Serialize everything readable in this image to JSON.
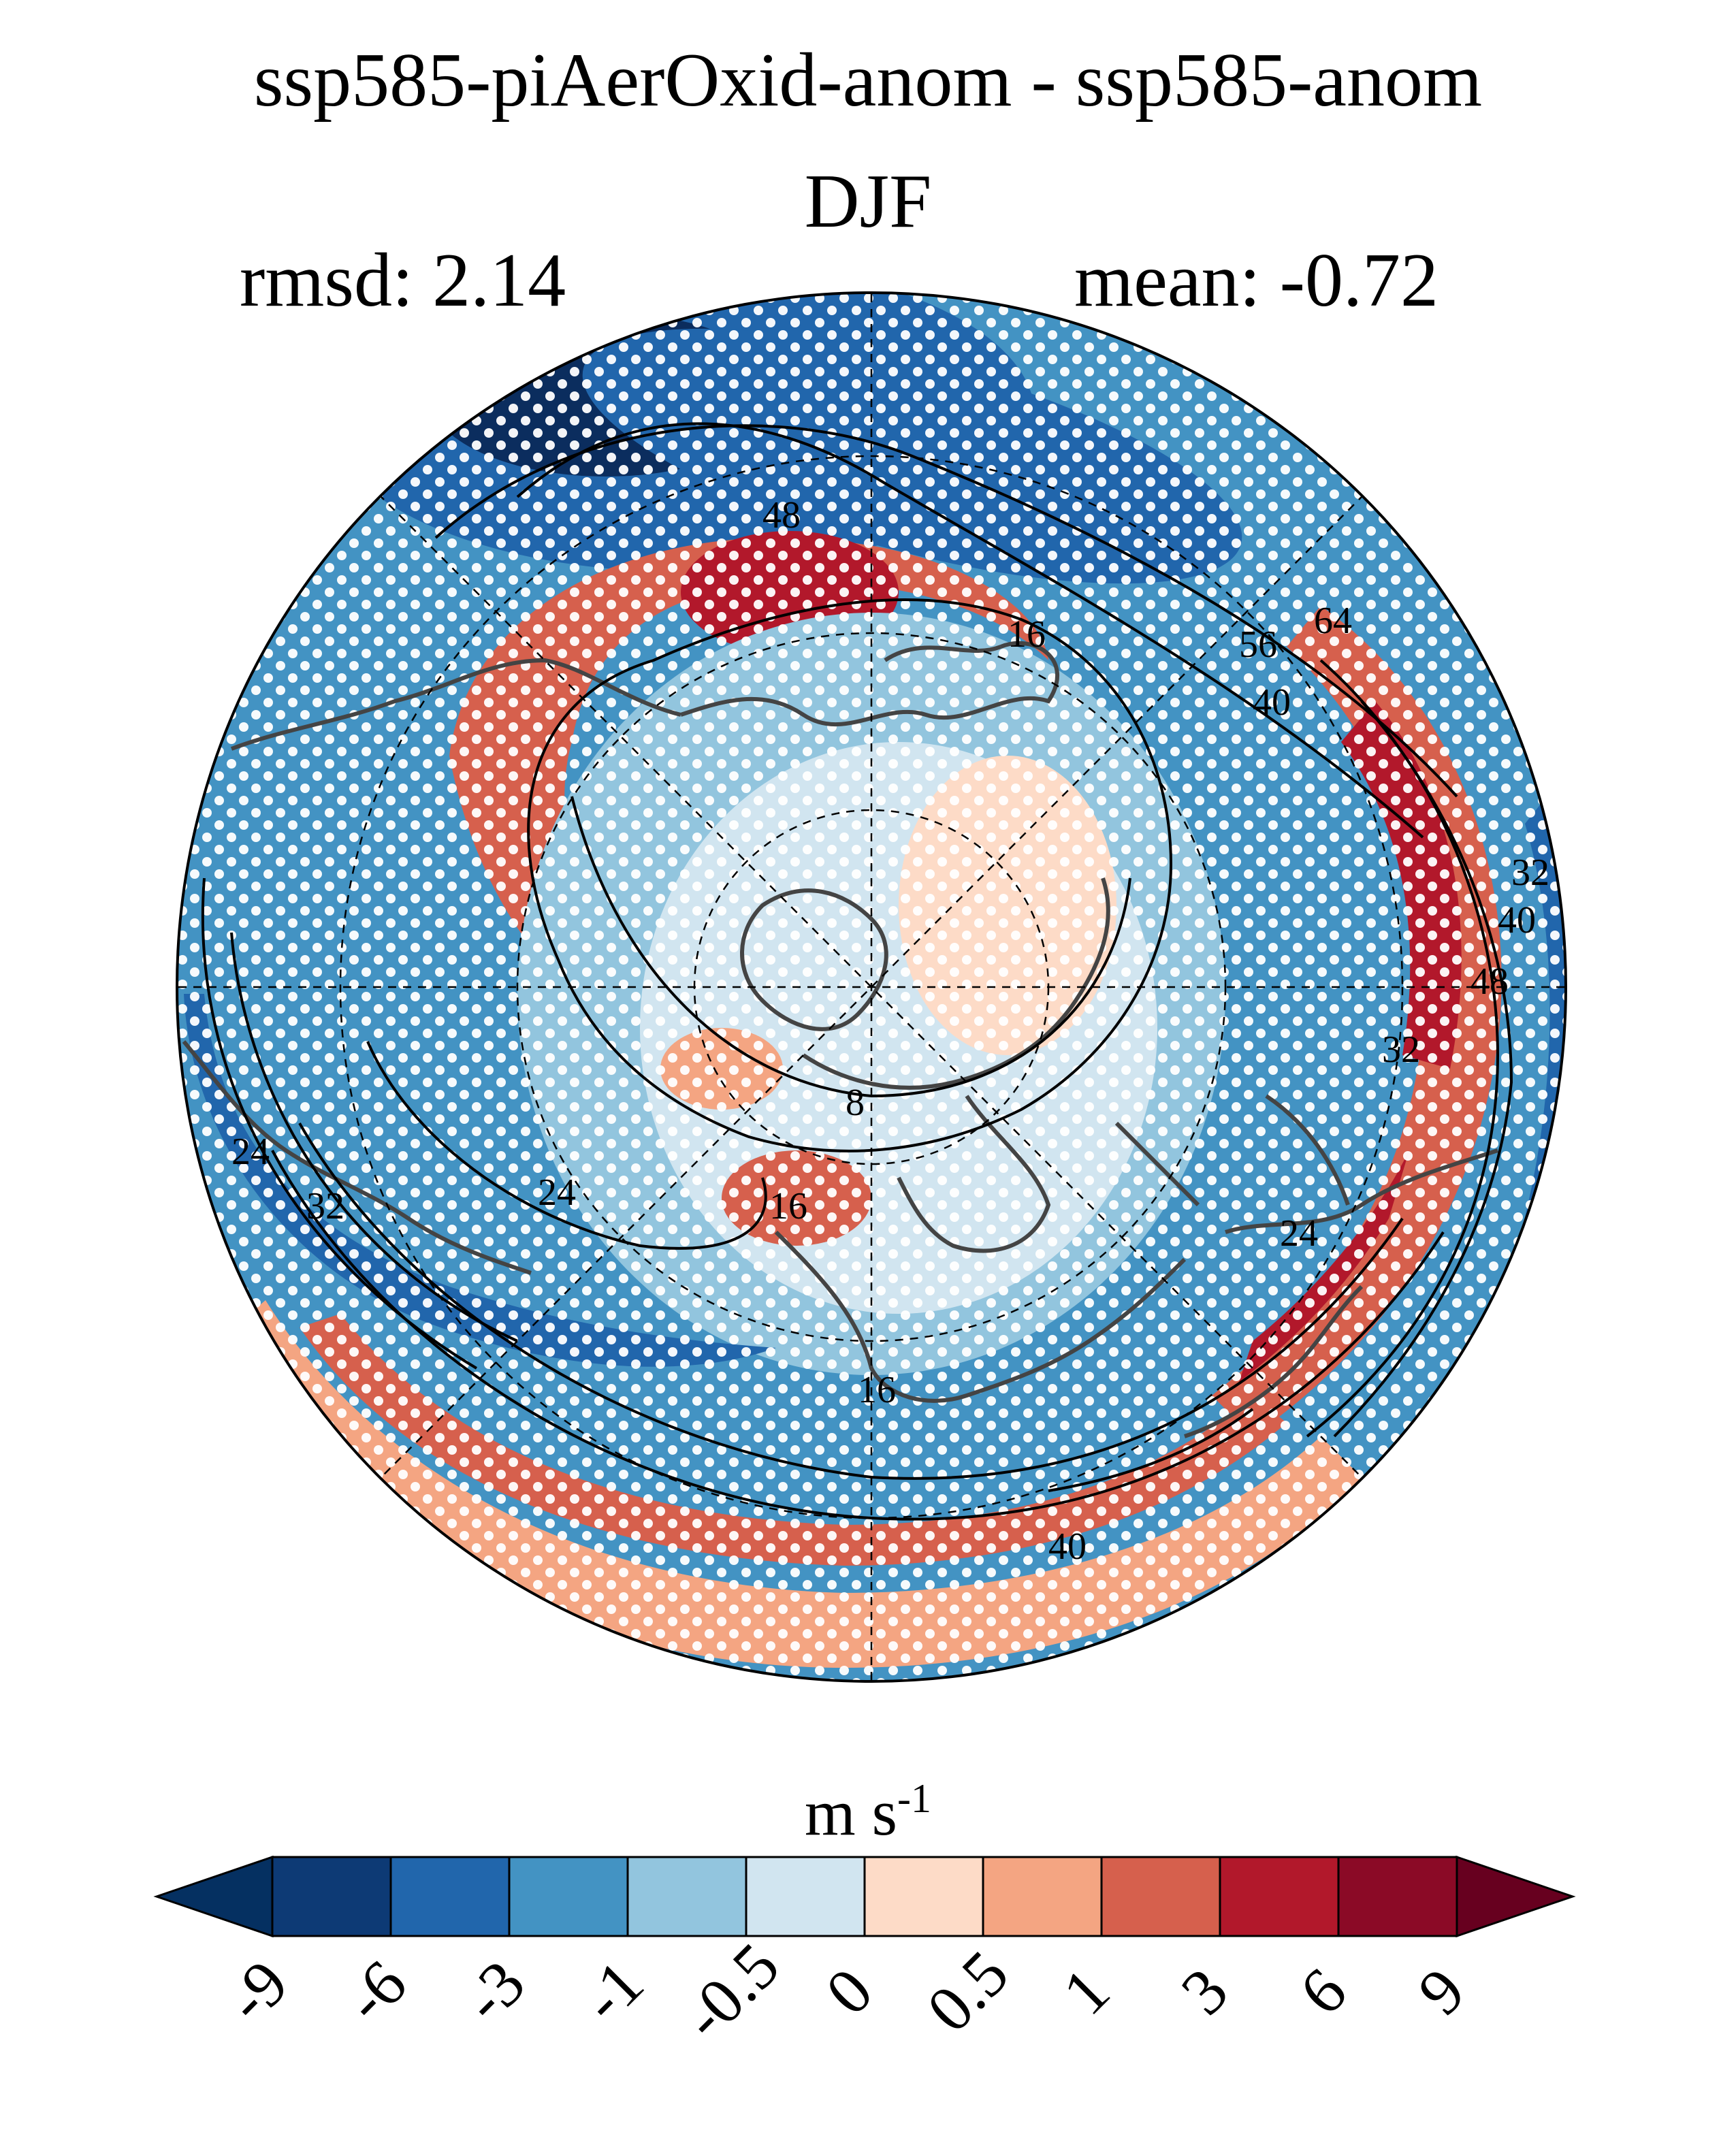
{
  "header": {
    "title": "ssp585-piAerOxid-anom - ssp585-anom",
    "season": "DJF",
    "rmsd_text": "rmsd: 2.14",
    "mean_text": "mean: -0.72"
  },
  "map": {
    "projection": "north-polar-stereographic",
    "contour_labels": [
      "24",
      "48",
      "16",
      "64",
      "56",
      "40",
      "32",
      "40",
      "48",
      "32",
      "8",
      "16",
      "24",
      "24",
      "32",
      "24",
      "16",
      "40"
    ],
    "colors": {
      "deep_blue": "#0b2d5e",
      "blue": "#2166ac",
      "mid_blue": "#4393c3",
      "light_blue": "#92c5de",
      "pale_blue": "#d1e5f0",
      "pale_red": "#fddbc7",
      "light_red": "#f4a582",
      "red": "#d6604d",
      "dark_red": "#b2182b",
      "deep_red": "#67001f",
      "coast": "#444444"
    }
  },
  "colorbar": {
    "units": "m s",
    "units_exp": "-1",
    "ticks": [
      "-9",
      "-6",
      "-3",
      "-1",
      "-0.5",
      "0",
      "0.5",
      "1",
      "3",
      "6",
      "9"
    ],
    "colors": [
      "#053061",
      "#0d3a75",
      "#2166ac",
      "#4393c3",
      "#92c5de",
      "#d1e5f0",
      "#fddbc7",
      "#f4a582",
      "#d6604d",
      "#b2182b",
      "#8b0a26",
      "#67001f"
    ]
  }
}
